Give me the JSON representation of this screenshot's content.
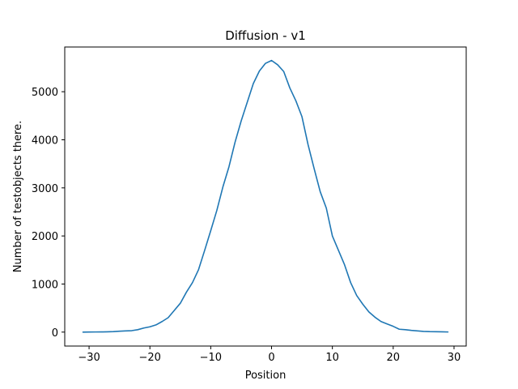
{
  "chart_data": {
    "type": "line",
    "title": "Diffusion - v1",
    "xlabel": "Position",
    "ylabel": "Number of testobjects there.",
    "xlim": [
      -34,
      32
    ],
    "ylim": [
      -290,
      5930
    ],
    "xticks": [
      -30,
      -20,
      -10,
      0,
      10,
      20,
      30
    ],
    "xtick_labels": [
      "−30",
      "−20",
      "−10",
      "0",
      "10",
      "20",
      "30"
    ],
    "yticks": [
      0,
      1000,
      2000,
      3000,
      4000,
      5000
    ],
    "ytick_labels": [
      "0",
      "1000",
      "2000",
      "3000",
      "4000",
      "5000"
    ],
    "grid": false,
    "series": [
      {
        "color": "#1f77b4",
        "x": [
          -31,
          -30,
          -29,
          -28,
          -27,
          -26,
          -25,
          -24,
          -23,
          -22,
          -21,
          -20,
          -19,
          -18,
          -17,
          -16,
          -15,
          -14,
          -13,
          -12,
          -11,
          -10,
          -9,
          -8,
          -7,
          -6,
          -5,
          -4,
          -3,
          -2,
          -1,
          0,
          1,
          2,
          3,
          4,
          5,
          6,
          7,
          8,
          9,
          10,
          11,
          12,
          13,
          14,
          15,
          16,
          17,
          18,
          19,
          20,
          21,
          22,
          23,
          24,
          25,
          26,
          27,
          28,
          29
        ],
        "y": [
          0,
          2,
          3,
          4,
          6,
          10,
          18,
          25,
          30,
          50,
          85,
          110,
          150,
          220,
          300,
          450,
          600,
          830,
          1030,
          1300,
          1700,
          2110,
          2530,
          3020,
          3440,
          3950,
          4390,
          4780,
          5170,
          5430,
          5590,
          5650,
          5560,
          5420,
          5080,
          4810,
          4480,
          3900,
          3400,
          2920,
          2580,
          2000,
          1700,
          1400,
          1030,
          760,
          580,
          420,
          310,
          220,
          170,
          120,
          60,
          50,
          35,
          25,
          15,
          10,
          8,
          6,
          3
        ]
      }
    ]
  }
}
